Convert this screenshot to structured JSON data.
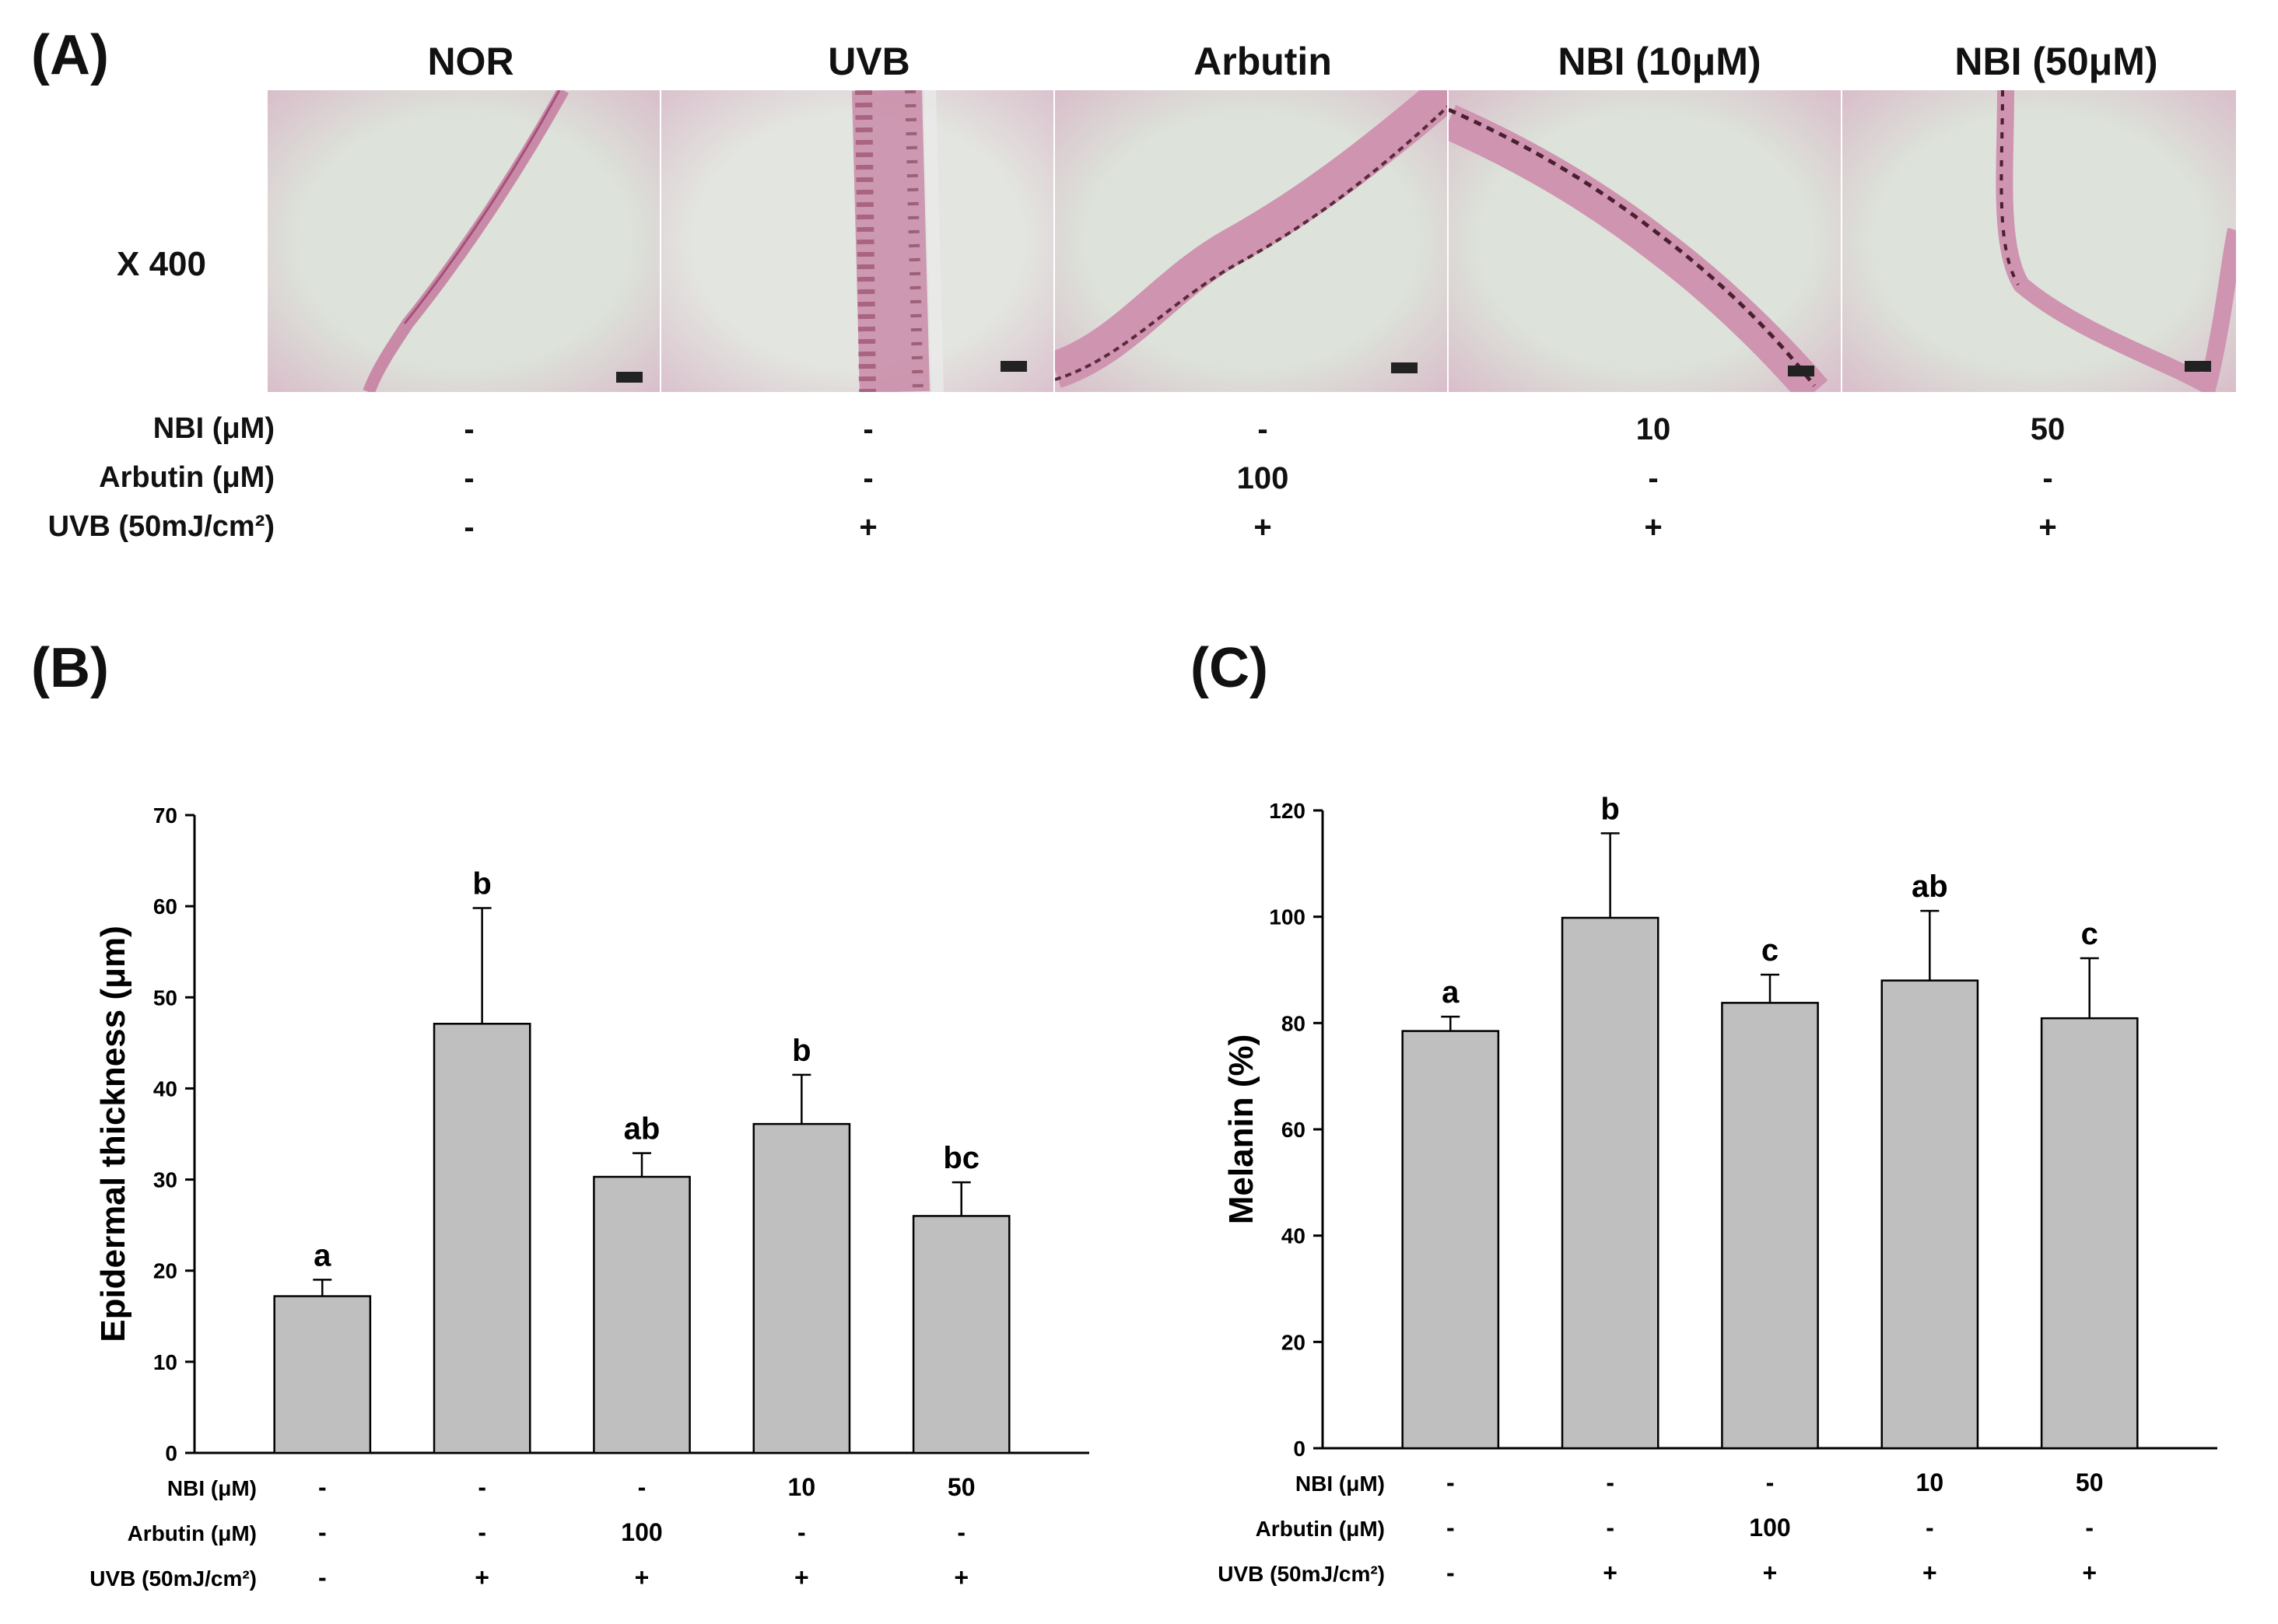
{
  "panel_labels": {
    "a": "(A)",
    "b": "(B)",
    "c": "(C)"
  },
  "panelA": {
    "magnification": "X 400",
    "groups": [
      "NOR",
      "UVB",
      "Arbutin",
      "NBI (10μM)",
      "NBI (50μM)"
    ],
    "conditions": [
      {
        "label": "NBI (μM)",
        "values": [
          "-",
          "-",
          "-",
          "10",
          "50"
        ]
      },
      {
        "label": "Arbutin (μM)",
        "values": [
          "-",
          "-",
          "100",
          "-",
          "-"
        ]
      },
      {
        "label": "UVB (50mJ/cm²)",
        "values": [
          "-",
          "+",
          "+",
          "+",
          "+"
        ]
      }
    ]
  },
  "chart_data": [
    {
      "type": "bar",
      "categories": [
        "NOR",
        "UVB",
        "Arbutin",
        "NBI 10",
        "NBI 50"
      ],
      "values": [
        17.2,
        47.1,
        30.3,
        36.1,
        26.0
      ],
      "errors": [
        1.8,
        12.7,
        2.6,
        5.4,
        3.7
      ],
      "significance": [
        "a",
        "b",
        "ab",
        "b",
        "bc"
      ],
      "ylabel": "Epidermal thickness (μm)",
      "ylim": [
        0,
        70
      ],
      "yticks": [
        0,
        10,
        20,
        30,
        40,
        50,
        60,
        70
      ],
      "bar_color": "#bfbfbf",
      "conditions": [
        {
          "label": "NBI (μM)",
          "values": [
            "-",
            "-",
            "-",
            "10",
            "50"
          ]
        },
        {
          "label": "Arbutin (μM)",
          "values": [
            "-",
            "-",
            "100",
            "-",
            "-"
          ]
        },
        {
          "label": "UVB (50mJ/cm²)",
          "values": [
            "-",
            "+",
            "+",
            "+",
            "+"
          ]
        }
      ]
    },
    {
      "type": "bar",
      "categories": [
        "NOR",
        "UVB",
        "Arbutin",
        "NBI 10",
        "NBI 50"
      ],
      "values": [
        78.5,
        99.8,
        83.8,
        88.0,
        80.9
      ],
      "errors": [
        2.7,
        15.9,
        5.3,
        13.1,
        11.3
      ],
      "significance": [
        "a",
        "b",
        "c",
        "ab",
        "c"
      ],
      "ylabel": "Melanin (%)",
      "ylim": [
        0,
        120
      ],
      "yticks": [
        0,
        20,
        40,
        60,
        80,
        100,
        120
      ],
      "bar_color": "#bfbfbf",
      "conditions": [
        {
          "label": "NBI (μM)",
          "values": [
            "-",
            "-",
            "-",
            "10",
            "50"
          ]
        },
        {
          "label": "Arbutin (μM)",
          "values": [
            "-",
            "-",
            "100",
            "-",
            "-"
          ]
        },
        {
          "label": "UVB (50mJ/cm²)",
          "values": [
            "-",
            "+",
            "+",
            "+",
            "+"
          ]
        }
      ]
    }
  ]
}
